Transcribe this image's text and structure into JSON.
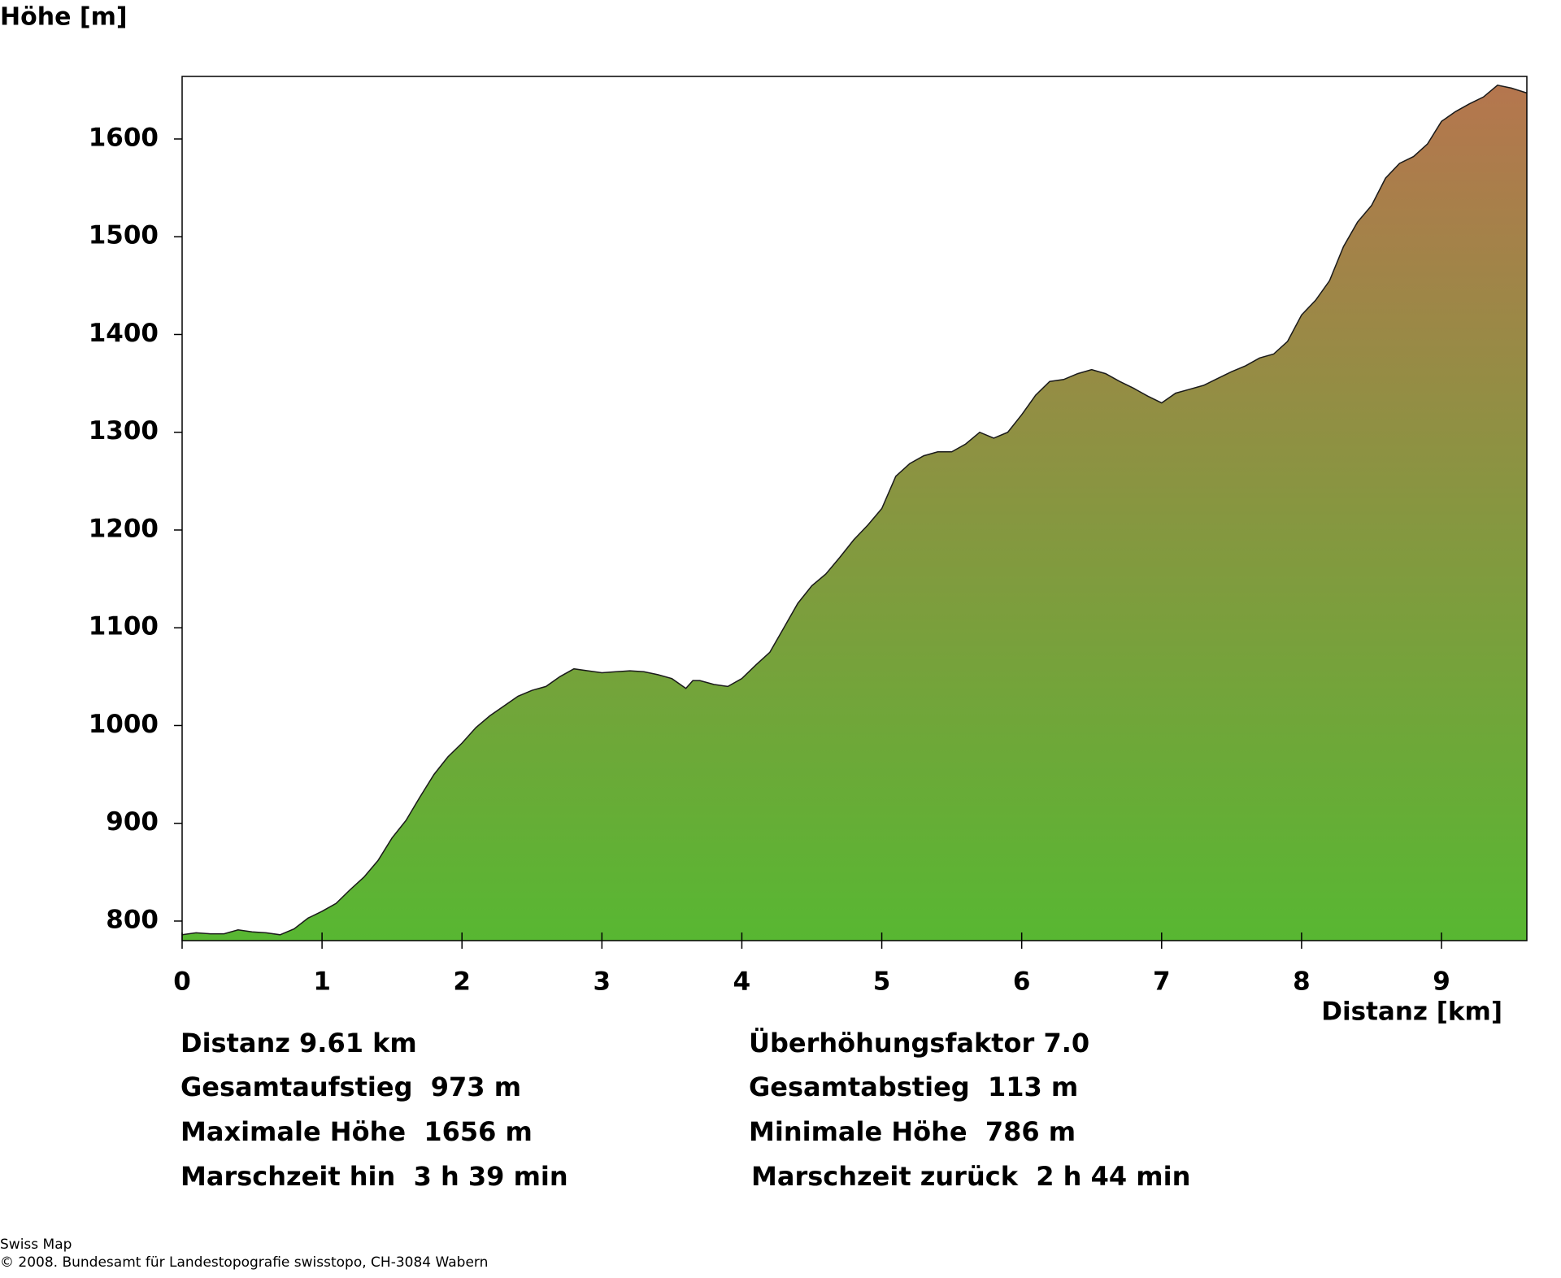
{
  "chart_data": {
    "type": "area",
    "ylabel": "Höhe [m]",
    "xlabel": "Distanz [km]",
    "x": [
      0,
      0.1,
      0.2,
      0.3,
      0.4,
      0.5,
      0.6,
      0.7,
      0.8,
      0.9,
      1.0,
      1.1,
      1.2,
      1.3,
      1.4,
      1.5,
      1.6,
      1.7,
      1.8,
      1.9,
      2.0,
      2.1,
      2.2,
      2.3,
      2.4,
      2.5,
      2.6,
      2.7,
      2.8,
      2.9,
      3.0,
      3.1,
      3.2,
      3.3,
      3.4,
      3.5,
      3.6,
      3.65,
      3.7,
      3.8,
      3.9,
      4.0,
      4.1,
      4.2,
      4.3,
      4.4,
      4.5,
      4.6,
      4.7,
      4.8,
      4.9,
      5.0,
      5.1,
      5.2,
      5.3,
      5.4,
      5.5,
      5.6,
      5.7,
      5.8,
      5.9,
      6.0,
      6.1,
      6.2,
      6.3,
      6.4,
      6.5,
      6.6,
      6.7,
      6.8,
      6.9,
      7.0,
      7.1,
      7.2,
      7.3,
      7.4,
      7.5,
      7.6,
      7.7,
      7.8,
      7.9,
      8.0,
      8.1,
      8.2,
      8.3,
      8.4,
      8.5,
      8.6,
      8.7,
      8.8,
      8.9,
      9.0,
      9.1,
      9.2,
      9.3,
      9.4,
      9.5,
      9.61
    ],
    "values": [
      786,
      788,
      787,
      787,
      791,
      789,
      788,
      786,
      792,
      803,
      810,
      818,
      832,
      845,
      862,
      885,
      903,
      927,
      950,
      968,
      982,
      998,
      1010,
      1020,
      1030,
      1036,
      1040,
      1050,
      1058,
      1056,
      1054,
      1055,
      1056,
      1055,
      1052,
      1048,
      1038,
      1046,
      1046,
      1042,
      1040,
      1048,
      1062,
      1075,
      1100,
      1125,
      1143,
      1155,
      1172,
      1190,
      1205,
      1222,
      1255,
      1268,
      1276,
      1280,
      1280,
      1288,
      1300,
      1294,
      1300,
      1318,
      1338,
      1352,
      1354,
      1360,
      1364,
      1360,
      1352,
      1345,
      1337,
      1330,
      1340,
      1344,
      1348,
      1355,
      1362,
      1368,
      1376,
      1380,
      1393,
      1420,
      1435,
      1455,
      1490,
      1515,
      1532,
      1560,
      1575,
      1582,
      1595,
      1618,
      1628,
      1636,
      1643,
      1655,
      1652,
      1647
    ],
    "line_color": "#1a1a1a",
    "area_colors": [
      "#58b732",
      "#b5764e"
    ],
    "xlim": [
      0,
      9.61
    ],
    "ylim": [
      780,
      1664
    ],
    "xticks": [
      0,
      1,
      2,
      3,
      4,
      5,
      6,
      7,
      8,
      9
    ],
    "yticks": [
      800,
      900,
      1000,
      1100,
      1200,
      1300,
      1400,
      1500,
      1600
    ]
  },
  "stats": {
    "left": [
      "Distanz 9.61 km",
      "Gesamtaufstieg  973 m",
      "Maximale Höhe  1656 m",
      "Marschzeit hin  3 h 39 min"
    ],
    "right": [
      "Überhöhungsfaktor 7.0",
      "Gesamtabstieg  113 m",
      "Minimale Höhe  786 m",
      "Marschzeit zurück  2 h 44 min"
    ]
  },
  "footer": [
    "Swiss Map",
    "© 2008. Bundesamt für Landestopografie swisstopo, CH-3084 Wabern"
  ]
}
